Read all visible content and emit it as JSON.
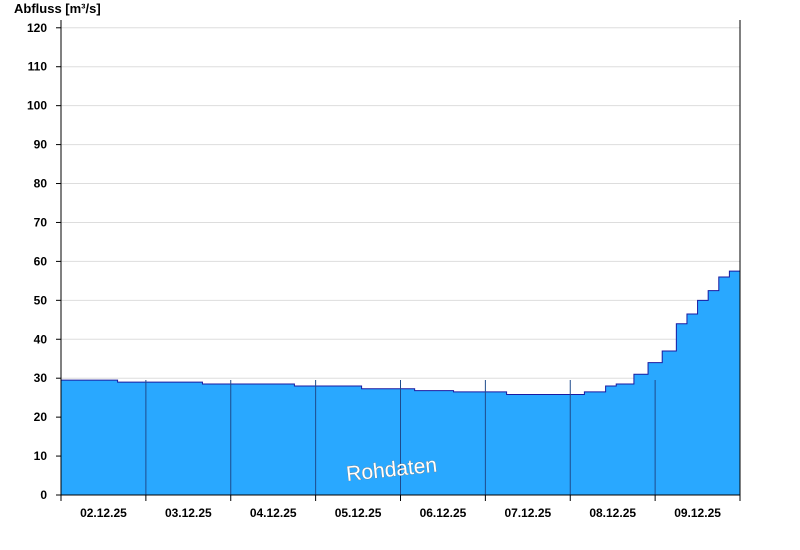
{
  "chart_data": {
    "type": "area",
    "ylabel": "Abfluss [m³/s]",
    "xlabel": "",
    "title": "",
    "ylim": [
      0,
      122
    ],
    "yticks": [
      0,
      10,
      20,
      30,
      40,
      50,
      60,
      70,
      80,
      90,
      100,
      110,
      120
    ],
    "xlim": [
      "01.12.25 12:00",
      "09.12.25 12:00"
    ],
    "x_tick_labels": [
      "02.12.25",
      "03.12.25",
      "04.12.25",
      "05.12.25",
      "06.12.25",
      "07.12.25",
      "08.12.25",
      "09.12.25"
    ],
    "day_boundaries": [
      "02.12.25 12:00",
      "03.12.25 12:00",
      "04.12.25 12:00",
      "05.12.25 12:00",
      "06.12.25 12:00",
      "07.12.25 12:00",
      "08.12.25 12:00"
    ],
    "grid": true,
    "annotation": "Rohdaten",
    "colors": {
      "fill": "#29a8ff",
      "line": "#1a1aa0",
      "grid": "#dddddd",
      "axis": "#000000",
      "day_line": "#1e4b8c"
    },
    "series": [
      {
        "x": [
          "01.12.25 12:00",
          "02.12.25 03:00",
          "02.12.25 04:00",
          "03.12.25 03:00",
          "03.12.25 04:00",
          "04.12.25 05:00",
          "04.12.25 06:00",
          "05.12.25 00:00",
          "05.12.25 01:00",
          "05.12.25 15:00",
          "05.12.25 16:00",
          "06.12.25 00:00",
          "06.12.25 03:00",
          "06.12.25 15:00",
          "06.12.25 18:00",
          "07.12.25 06:00",
          "07.12.25 12:00",
          "07.12.25 16:00",
          "07.12.25 22:00",
          "08.12.25 01:00",
          "08.12.25 06:00",
          "08.12.25 10:00",
          "08.12.25 14:00",
          "08.12.25 18:00",
          "08.12.25 21:00",
          "09.12.25 00:00",
          "09.12.25 03:00",
          "09.12.25 06:00",
          "09.12.25 09:00",
          "09.12.25 12:00"
        ],
        "y": [
          29.5,
          29.5,
          29.0,
          29.0,
          28.5,
          28.5,
          28.0,
          28.0,
          27.3,
          27.3,
          26.8,
          26.8,
          26.5,
          26.5,
          25.8,
          25.8,
          25.8,
          26.5,
          28.0,
          28.5,
          31.0,
          34.0,
          37.0,
          44.0,
          46.5,
          50.0,
          52.5,
          56.0,
          57.5,
          59.0
        ]
      }
    ]
  }
}
